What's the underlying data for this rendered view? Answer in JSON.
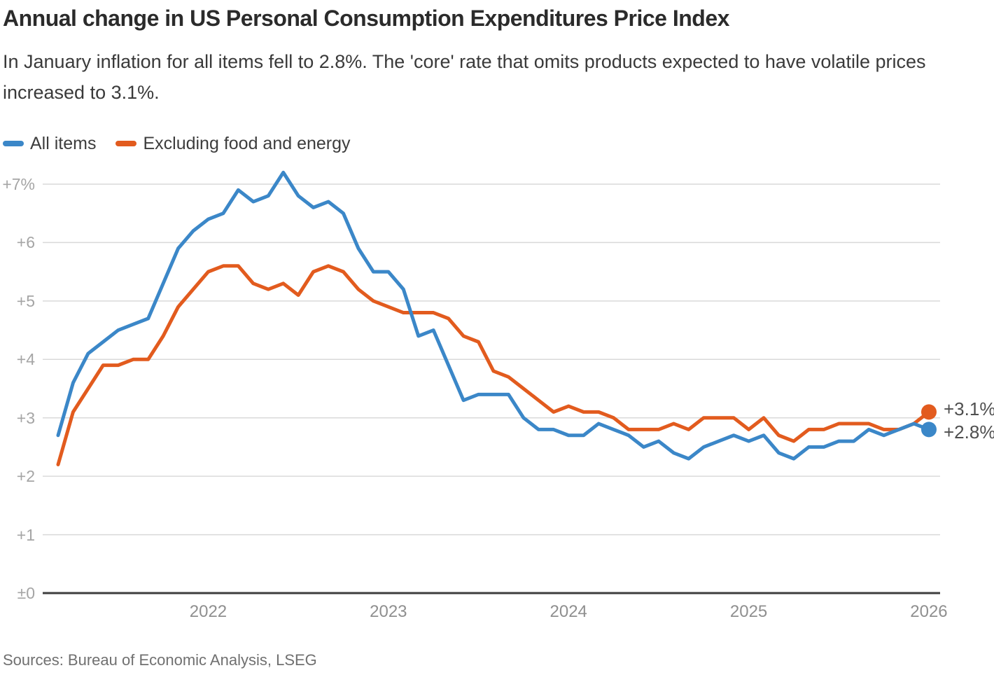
{
  "header": {
    "title": "Annual change in US Personal Consumption Expenditures Price Index",
    "subtitle": "In January inflation for all items fell to 2.8%. The 'core' rate that omits products expected to have volatile prices increased to 3.1%."
  },
  "footer": {
    "sources": "Sources: Bureau of Economic Analysis, LSEG"
  },
  "colors": {
    "all_items": "#3b87c8",
    "core": "#e25b1e",
    "grid": "#d9d9d9",
    "zero_axis": "#3d3d3d",
    "y_label": "#a5a5a5",
    "x_label": "#8f8f8f",
    "end_label": "#4f4f4f"
  },
  "chart_data": {
    "type": "line",
    "title": "Annual change in US Personal Consumption Expenditures Price Index",
    "x": [
      "2021-03",
      "2021-04",
      "2021-05",
      "2021-06",
      "2021-07",
      "2021-08",
      "2021-09",
      "2021-10",
      "2021-11",
      "2021-12",
      "2022-01",
      "2022-02",
      "2022-03",
      "2022-04",
      "2022-05",
      "2022-06",
      "2022-07",
      "2022-08",
      "2022-09",
      "2022-10",
      "2022-11",
      "2022-12",
      "2023-01",
      "2023-02",
      "2023-03",
      "2023-04",
      "2023-05",
      "2023-06",
      "2023-07",
      "2023-08",
      "2023-09",
      "2023-10",
      "2023-11",
      "2023-12",
      "2024-01",
      "2024-02",
      "2024-03",
      "2024-04",
      "2024-05",
      "2024-06",
      "2024-07",
      "2024-08",
      "2024-09",
      "2024-10",
      "2024-11",
      "2024-12",
      "2025-01",
      "2025-02",
      "2025-03",
      "2025-04",
      "2025-05",
      "2025-06",
      "2025-07",
      "2025-08",
      "2025-09",
      "2025-10",
      "2025-11",
      "2025-12",
      "2026-01"
    ],
    "series": [
      {
        "name": "All items",
        "color": "#3b87c8",
        "end_label": "+2.8%",
        "values": [
          2.7,
          3.6,
          4.1,
          4.3,
          4.5,
          4.6,
          4.7,
          5.3,
          5.9,
          6.2,
          6.4,
          6.5,
          6.9,
          6.7,
          6.8,
          7.2,
          6.8,
          6.6,
          6.7,
          6.5,
          5.9,
          5.5,
          5.5,
          5.2,
          4.4,
          4.5,
          3.9,
          3.3,
          3.4,
          3.4,
          3.4,
          3.0,
          2.8,
          2.8,
          2.7,
          2.7,
          2.9,
          2.8,
          2.7,
          2.5,
          2.6,
          2.4,
          2.3,
          2.5,
          2.6,
          2.7,
          2.6,
          2.7,
          2.4,
          2.3,
          2.5,
          2.5,
          2.6,
          2.6,
          2.8,
          2.7,
          2.8,
          2.9,
          2.8
        ]
      },
      {
        "name": "Excluding food and energy",
        "color": "#e25b1e",
        "end_label": "+3.1%",
        "values": [
          2.2,
          3.1,
          3.5,
          3.9,
          3.9,
          4.0,
          4.0,
          4.4,
          4.9,
          5.2,
          5.5,
          5.6,
          5.6,
          5.3,
          5.2,
          5.3,
          5.1,
          5.5,
          5.6,
          5.5,
          5.2,
          5.0,
          4.9,
          4.8,
          4.8,
          4.8,
          4.7,
          4.4,
          4.3,
          3.8,
          3.7,
          3.5,
          3.3,
          3.1,
          3.2,
          3.1,
          3.1,
          3.0,
          2.8,
          2.8,
          2.8,
          2.9,
          2.8,
          3.0,
          3.0,
          3.0,
          2.8,
          3.0,
          2.7,
          2.6,
          2.8,
          2.8,
          2.9,
          2.9,
          2.9,
          2.8,
          2.8,
          2.9,
          3.1
        ]
      }
    ],
    "yticks": [
      {
        "value": 7,
        "label": "+7%"
      },
      {
        "value": 6,
        "label": "+6"
      },
      {
        "value": 5,
        "label": "+5"
      },
      {
        "value": 4,
        "label": "+4"
      },
      {
        "value": 3,
        "label": "+3"
      },
      {
        "value": 2,
        "label": "+2"
      },
      {
        "value": 1,
        "label": "+1"
      },
      {
        "value": 0,
        "label": "±0"
      }
    ],
    "xticks": [
      {
        "x": "2022-01",
        "label": "2022"
      },
      {
        "x": "2023-01",
        "label": "2023"
      },
      {
        "x": "2024-01",
        "label": "2024"
      },
      {
        "x": "2025-01",
        "label": "2025"
      },
      {
        "x": "2026-01",
        "label": "2026"
      }
    ],
    "ylim": [
      0,
      7.5
    ],
    "grid": "horizontal",
    "legend_position": "top-left"
  }
}
